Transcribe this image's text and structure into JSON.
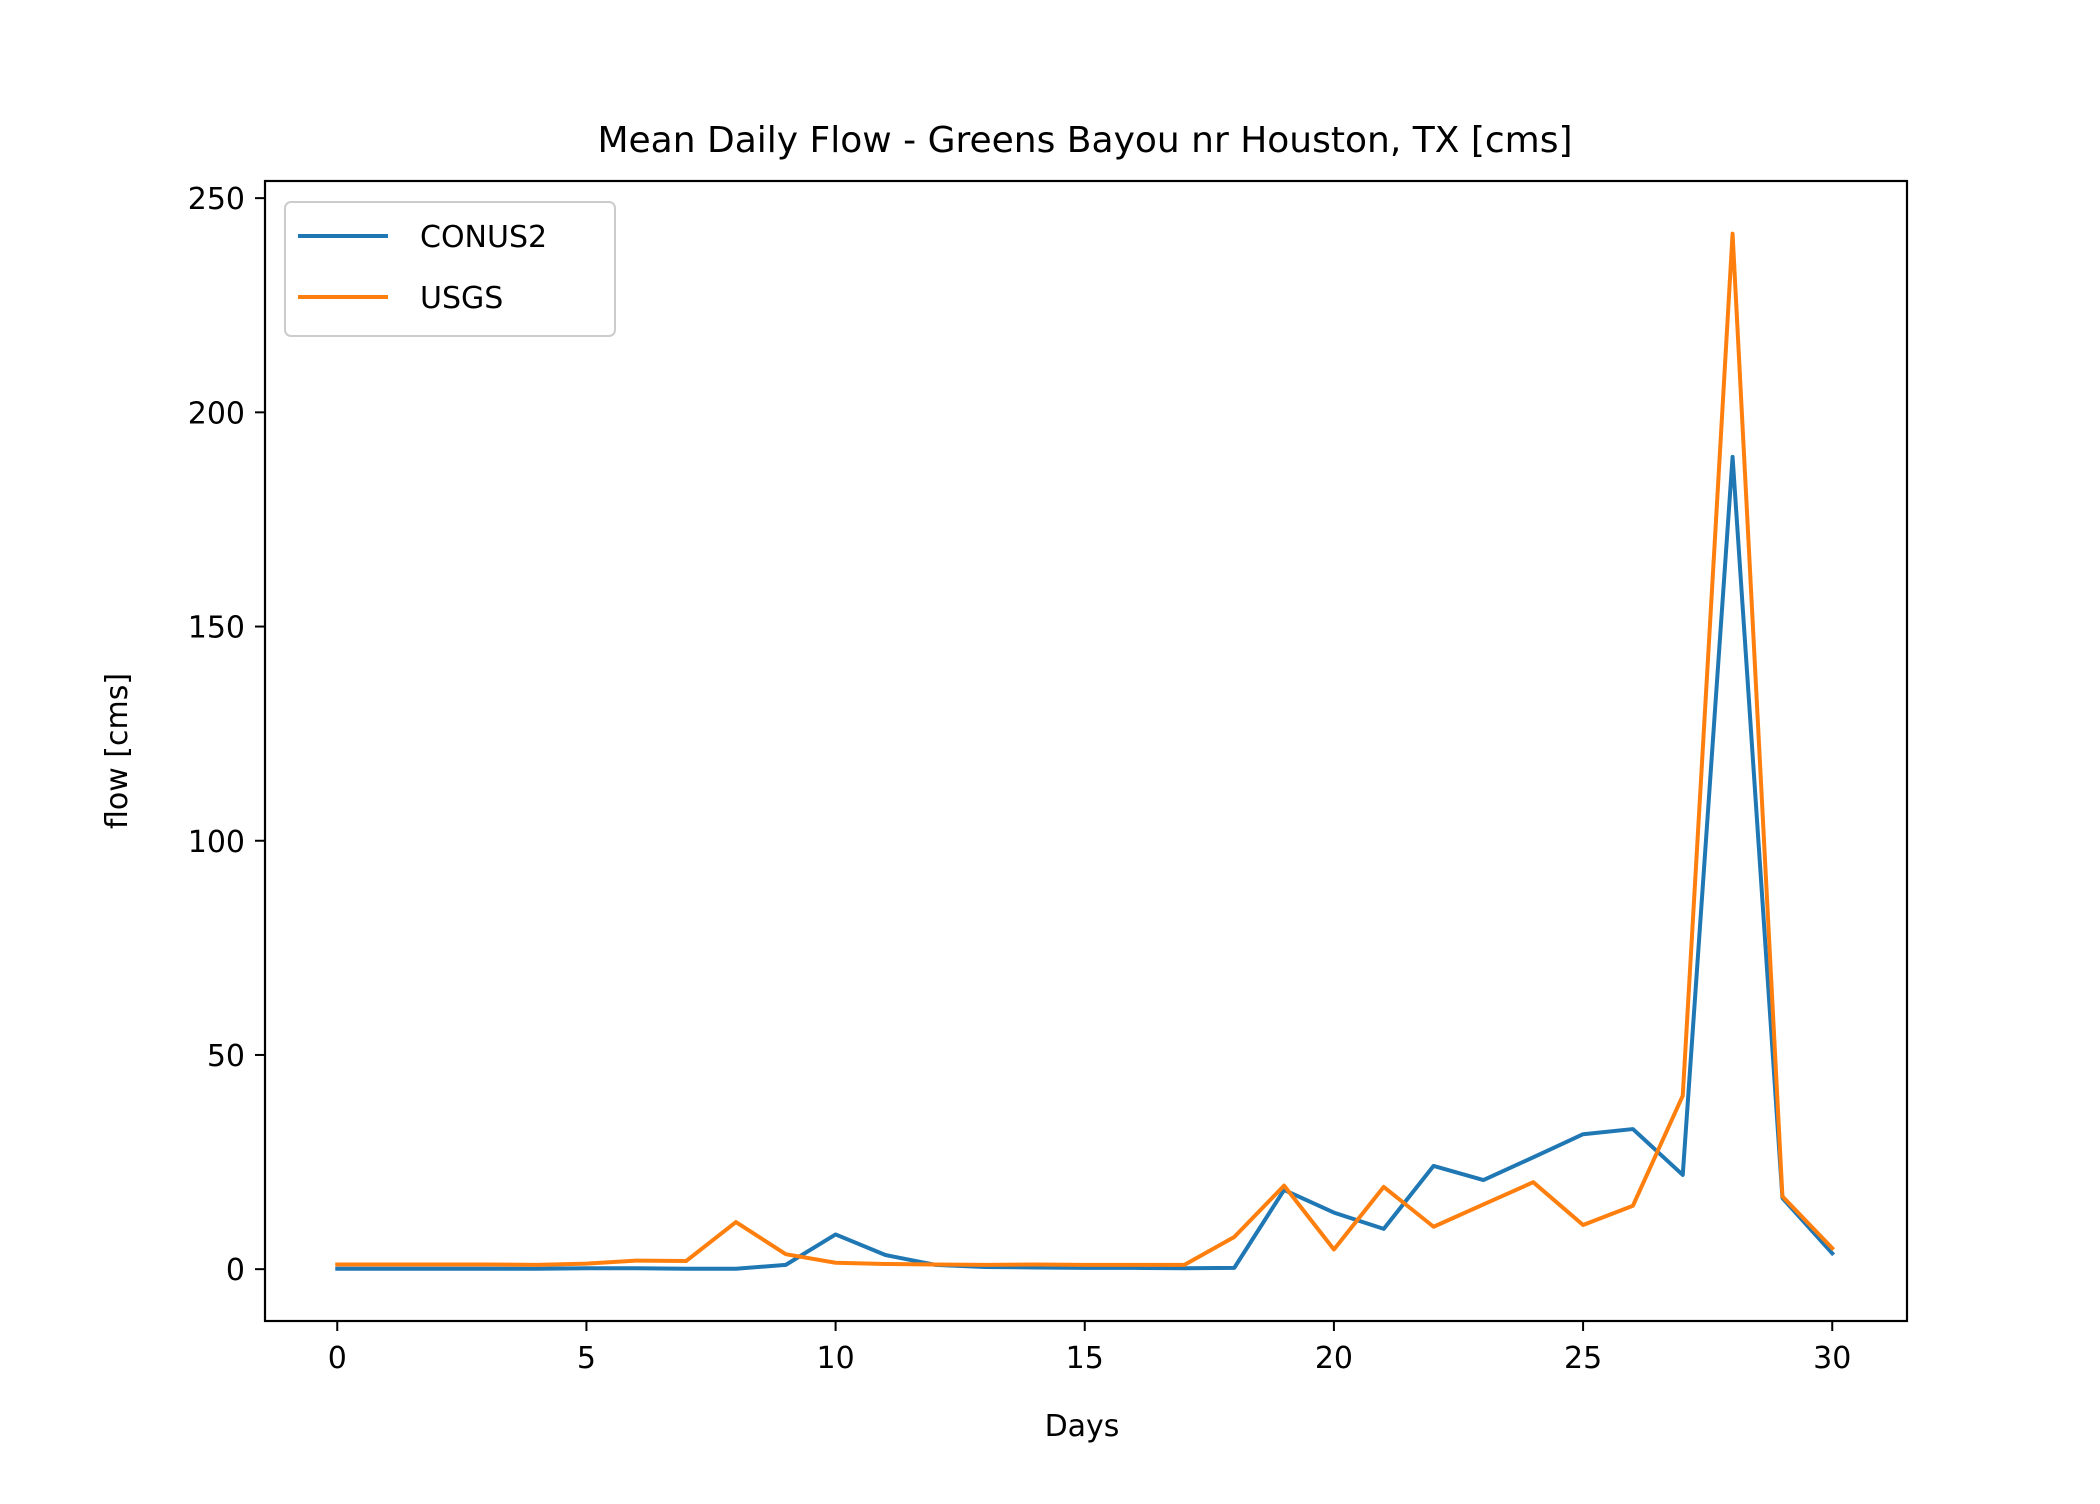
{
  "chart_data": {
    "type": "line",
    "title": "Mean Daily Flow - Greens Bayou nr Houston, TX [cms]",
    "xlabel": "Days",
    "ylabel": "flow [cms]",
    "xlim": [
      -1.45,
      31.5
    ],
    "ylim": [
      -12.1,
      254
    ],
    "xticks": [
      0,
      5,
      10,
      15,
      20,
      25,
      30
    ],
    "xtick_labels": [
      "0",
      "5",
      "10",
      "15",
      "20",
      "25",
      "30"
    ],
    "yticks": [
      0,
      50,
      100,
      150,
      200,
      250
    ],
    "ytick_labels": [
      "0",
      "50",
      "100",
      "150",
      "200",
      "250"
    ],
    "grid": false,
    "legend_position": "top-left",
    "x": [
      0,
      1,
      2,
      3,
      4,
      5,
      6,
      7,
      8,
      9,
      10,
      11,
      12,
      13,
      14,
      15,
      16,
      17,
      18,
      19,
      20,
      21,
      22,
      23,
      24,
      25,
      26,
      27,
      28,
      29,
      30
    ],
    "series": [
      {
        "name": "CONUS2",
        "color": "#1f77b4",
        "values": [
          0.1,
          0.1,
          0.1,
          0.1,
          0.1,
          0.2,
          0.2,
          0.1,
          0.1,
          1.0,
          8.1,
          3.3,
          1.0,
          0.5,
          0.4,
          0.3,
          0.3,
          0.2,
          0.3,
          18.5,
          13.2,
          9.4,
          24.1,
          20.8,
          26.1,
          31.5,
          32.7,
          22.0,
          189.6,
          16.6,
          3.7
        ]
      },
      {
        "name": "USGS",
        "color": "#ff7f0e",
        "values": [
          1.1,
          1.1,
          1.1,
          1.1,
          1.0,
          1.3,
          2.0,
          1.9,
          11.0,
          3.5,
          1.5,
          1.2,
          1.1,
          1.0,
          1.1,
          1.0,
          1.0,
          1.0,
          7.5,
          19.5,
          4.6,
          19.2,
          9.9,
          15.1,
          20.3,
          10.3,
          14.8,
          40.5,
          241.7,
          17.0,
          4.9
        ]
      }
    ]
  }
}
